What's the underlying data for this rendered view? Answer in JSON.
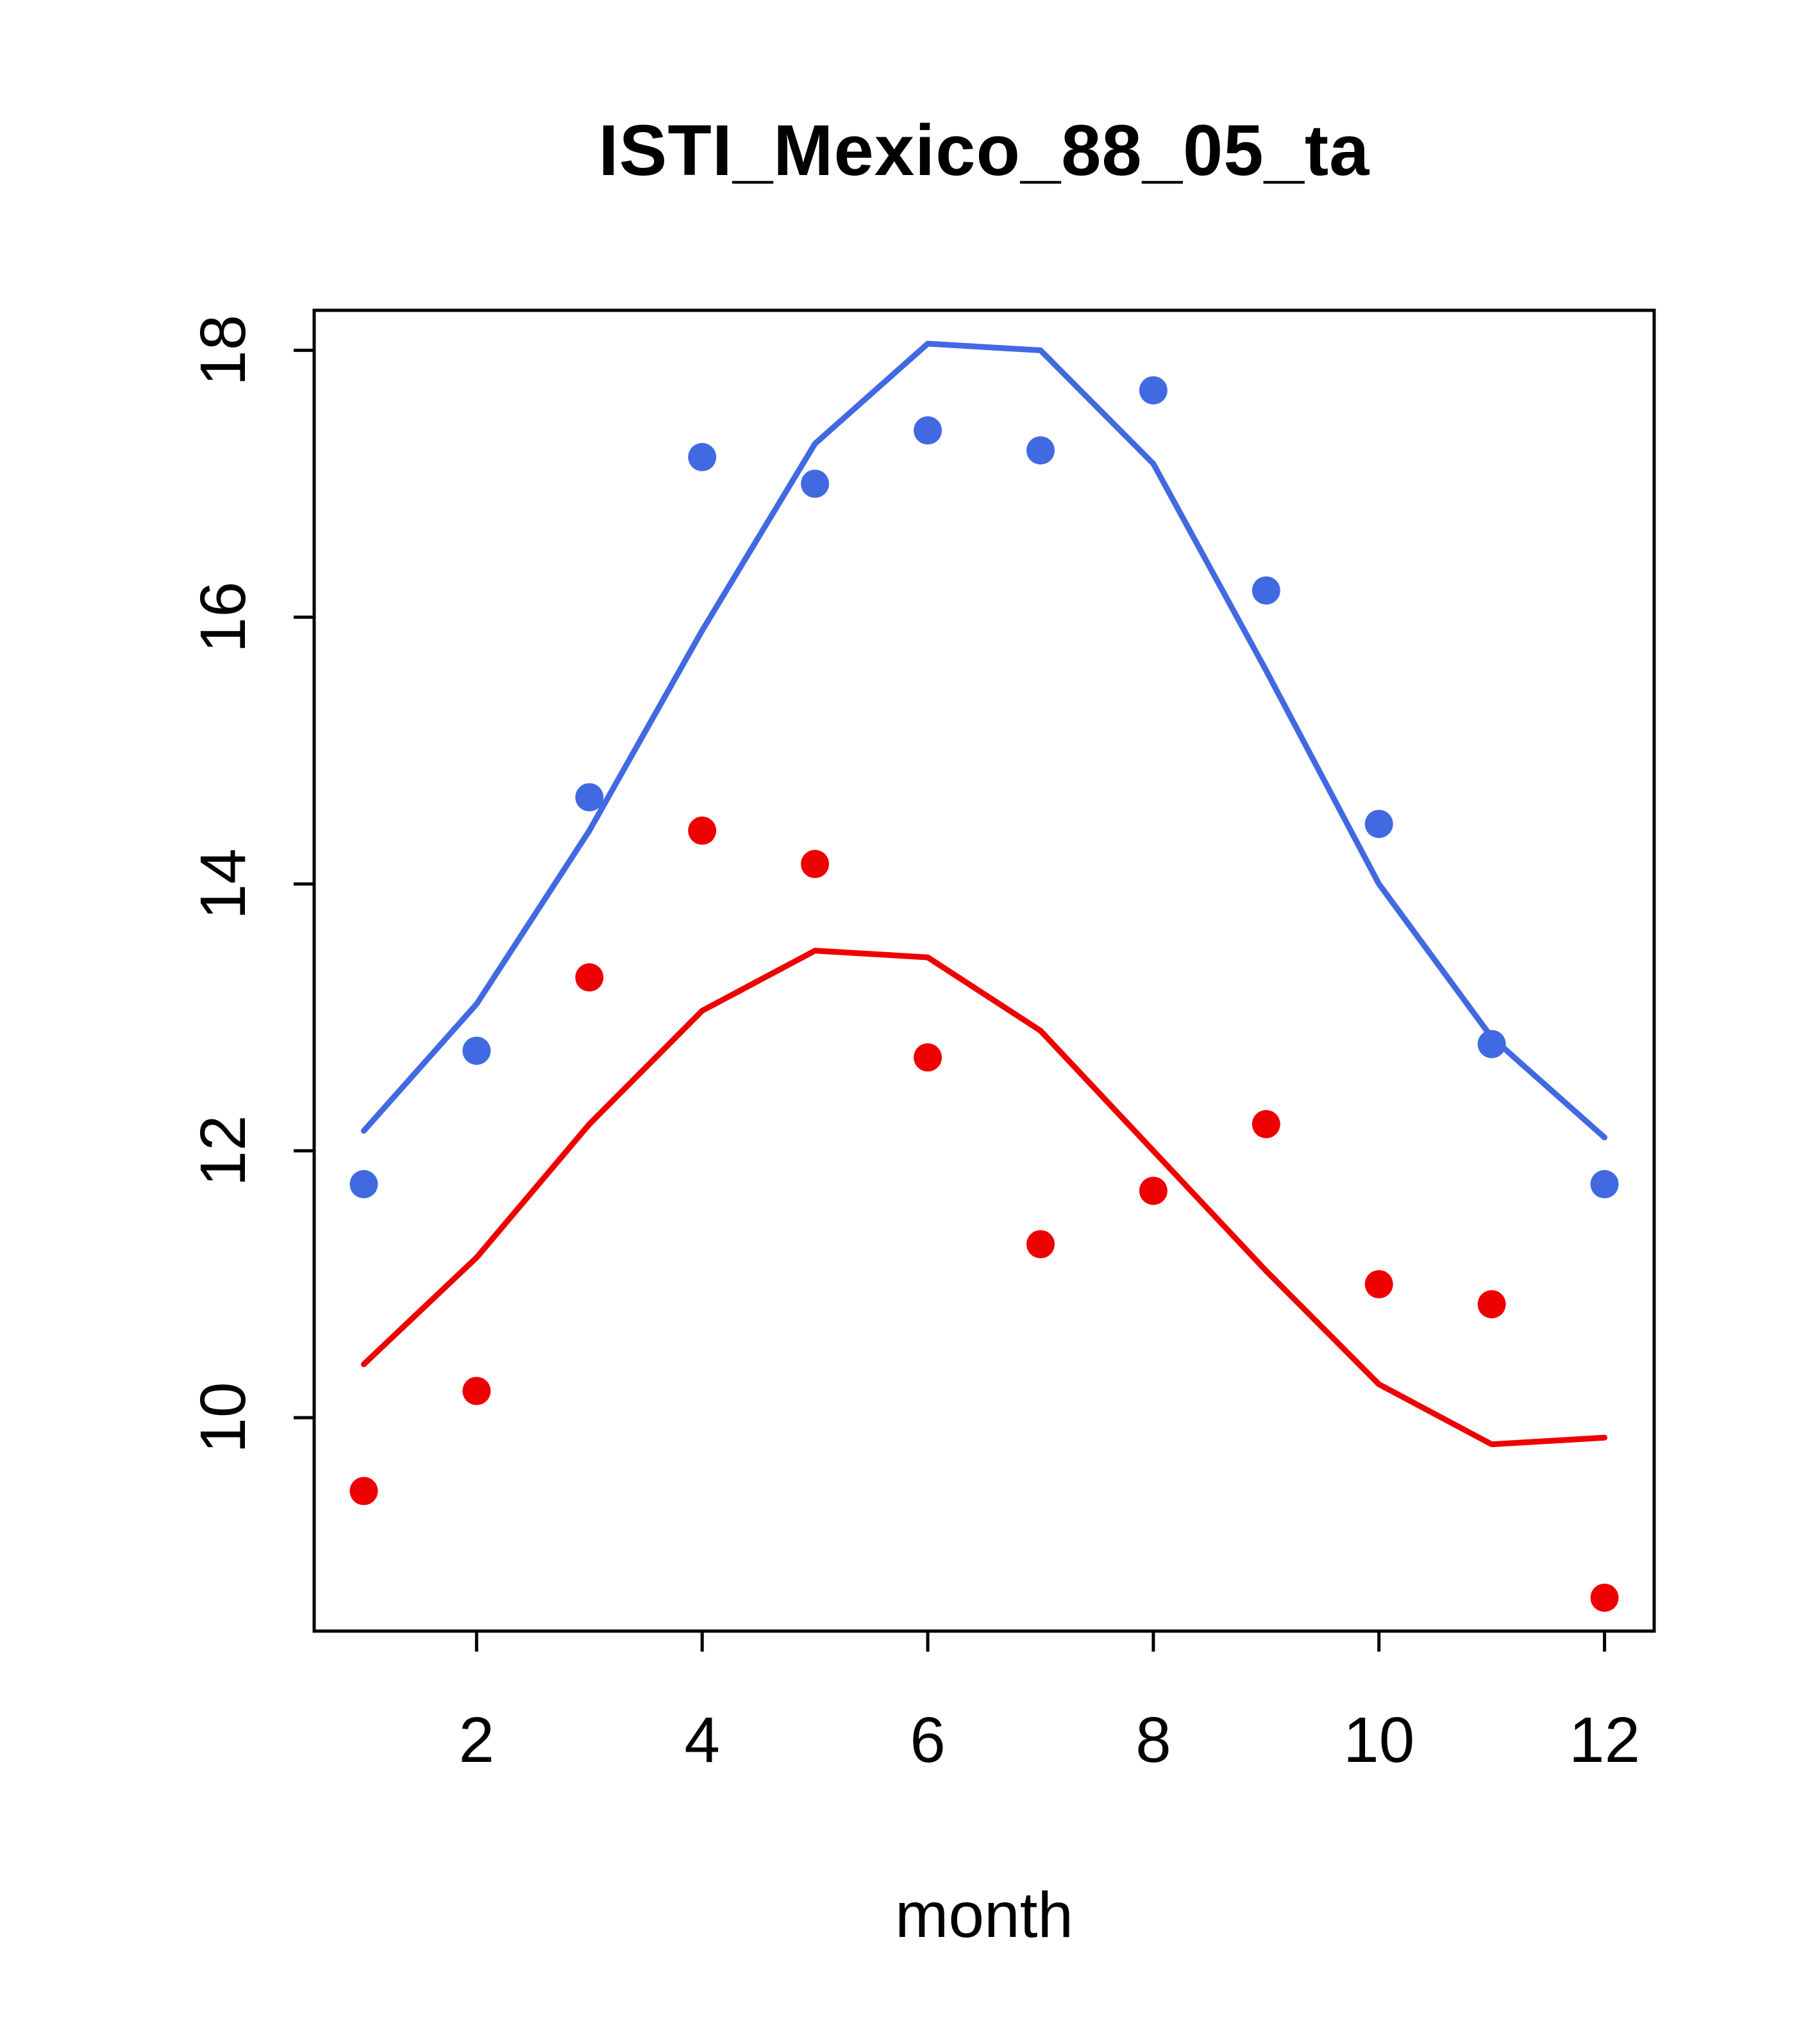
{
  "chart_data": {
    "type": "line",
    "title": "ISTI_Mexico_88_05_ta",
    "xlabel": "month",
    "ylabel": "",
    "x": [
      1,
      2,
      3,
      4,
      5,
      6,
      7,
      8,
      9,
      10,
      11,
      12
    ],
    "xticks": [
      2,
      4,
      6,
      8,
      10,
      12
    ],
    "yticks": [
      10,
      12,
      14,
      16,
      18
    ],
    "xlim": [
      0.56,
      12.44
    ],
    "ylim": [
      8.4,
      18.3
    ],
    "grid": false,
    "legend": "none",
    "colors": {
      "blue": "#4169e1",
      "red": "#ee0000",
      "axis": "#000000"
    },
    "series": [
      {
        "name": "blue_line",
        "style": "line",
        "color": "#4169e1",
        "values": [
          12.15,
          13.1,
          14.4,
          15.9,
          17.3,
          18.05,
          18.0,
          17.15,
          15.6,
          14.0,
          12.85,
          12.1
        ]
      },
      {
        "name": "red_line",
        "style": "line",
        "color": "#ee0000",
        "values": [
          10.4,
          11.2,
          12.2,
          13.05,
          13.5,
          13.45,
          12.9,
          12.0,
          11.1,
          10.25,
          9.8,
          9.85
        ]
      },
      {
        "name": "blue_points",
        "style": "points",
        "color": "#4169e1",
        "values": [
          11.75,
          12.75,
          14.65,
          17.2,
          17.0,
          17.4,
          17.25,
          17.7,
          16.2,
          14.45,
          12.8,
          11.75
        ]
      },
      {
        "name": "red_points",
        "style": "points",
        "color": "#ee0000",
        "values": [
          9.45,
          10.2,
          13.3,
          14.4,
          14.15,
          12.7,
          11.3,
          11.7,
          12.2,
          11.0,
          10.85,
          8.65
        ]
      }
    ]
  }
}
